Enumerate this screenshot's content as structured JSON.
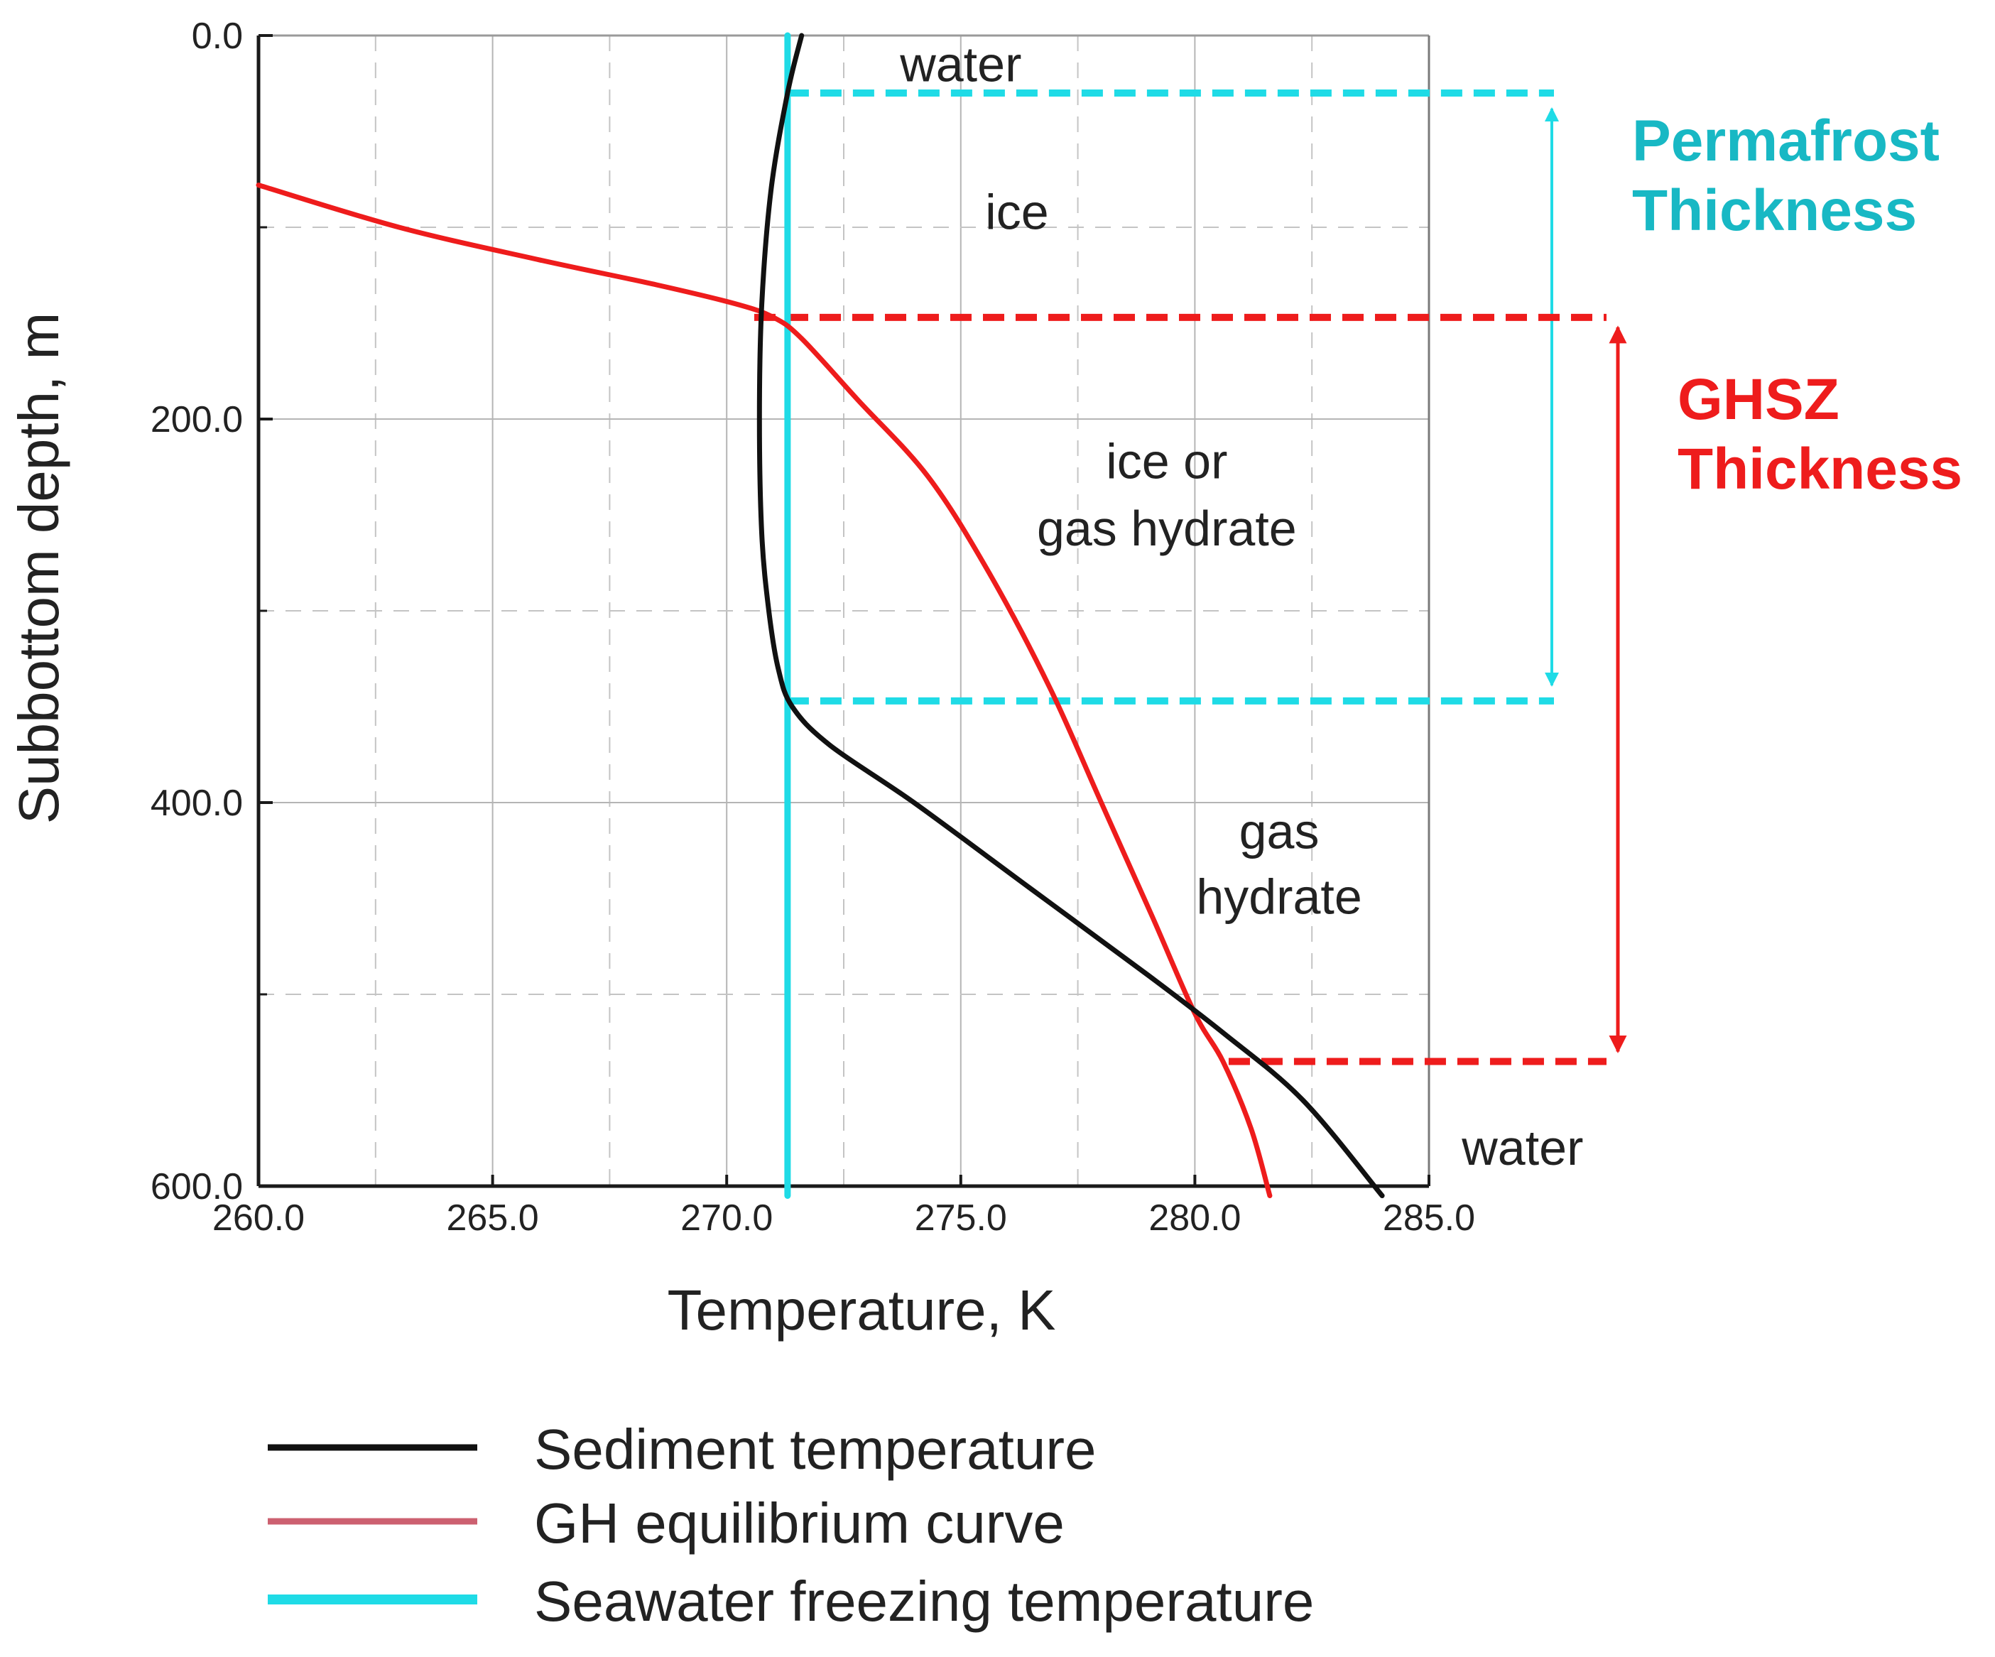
{
  "chart_data": {
    "type": "line",
    "title": "",
    "xlabel": "Temperature, K",
    "ylabel": "Subbottom depth, m",
    "xlim": [
      260,
      285
    ],
    "ylim": [
      600,
      0
    ],
    "x_ticks": [
      "260.0",
      "265.0",
      "270.0",
      "275.0",
      "280.0",
      "285.0"
    ],
    "y_ticks": [
      "0.0",
      "200.0",
      "400.0",
      "600.0"
    ],
    "grid": true,
    "series": [
      {
        "name": "Sediment temperature",
        "color": "#111111",
        "points": [
          [
            271.6,
            0
          ],
          [
            271.3,
            30
          ],
          [
            270.95,
            80
          ],
          [
            270.75,
            140
          ],
          [
            270.7,
            200
          ],
          [
            270.75,
            260
          ],
          [
            270.9,
            300
          ],
          [
            271.1,
            330
          ],
          [
            271.4,
            350
          ],
          [
            272.2,
            370
          ],
          [
            274.0,
            400
          ],
          [
            276.5,
            445
          ],
          [
            279.0,
            490
          ],
          [
            280.6,
            520
          ],
          [
            282.3,
            555
          ],
          [
            284.0,
            605
          ]
        ]
      },
      {
        "name": "GH equilibrium curve",
        "color": "#ee1c1c",
        "points": [
          [
            260.0,
            78
          ],
          [
            263.0,
            100
          ],
          [
            266.0,
            117
          ],
          [
            268.5,
            130
          ],
          [
            270.2,
            140
          ],
          [
            271.0,
            147
          ],
          [
            271.6,
            158
          ],
          [
            272.8,
            190
          ],
          [
            274.3,
            230
          ],
          [
            275.6,
            280
          ],
          [
            276.9,
            340
          ],
          [
            278.0,
            400
          ],
          [
            279.1,
            460
          ],
          [
            280.0,
            510
          ],
          [
            280.6,
            535
          ],
          [
            281.2,
            570
          ],
          [
            281.6,
            605
          ]
        ]
      },
      {
        "name": "Seawater freezing temperature",
        "color": "#1fdbe6",
        "points": [
          [
            271.3,
            0
          ],
          [
            271.3,
            605
          ]
        ]
      }
    ],
    "annotations": {
      "regions": [
        {
          "text": "water",
          "x": 275.0,
          "y": 15
        },
        {
          "text": "ice",
          "x": 276.2,
          "y": 92
        },
        {
          "text": "ice or",
          "x": 279.4,
          "y": 222
        },
        {
          "text": "gas hydrate",
          "x": 279.4,
          "y": 257
        },
        {
          "text": "gas",
          "x": 281.8,
          "y": 415
        },
        {
          "text": "hydrate",
          "x": 281.8,
          "y": 449
        },
        {
          "text": "water",
          "x": 287.0,
          "y": 580
        }
      ],
      "permafrost": {
        "top_depth": 30,
        "bottom_depth": 347,
        "label_line1": "Permafrost",
        "label_line2": "Thickness",
        "color": "#18b8c4",
        "line_color": "#1fdbe6"
      },
      "ghsz": {
        "top_depth": 147,
        "bottom_depth": 535,
        "label_line1": "GHSZ",
        "label_line2": "Thickness",
        "color": "#ee1c1c"
      }
    },
    "legend": [
      {
        "label": "Sediment temperature",
        "color": "#111111"
      },
      {
        "label": "GH equilibrium curve",
        "color": "#cc6070"
      },
      {
        "label": "Seawater freezing temperature",
        "color": "#1fdbe6"
      }
    ],
    "legend_position": "bottom"
  }
}
